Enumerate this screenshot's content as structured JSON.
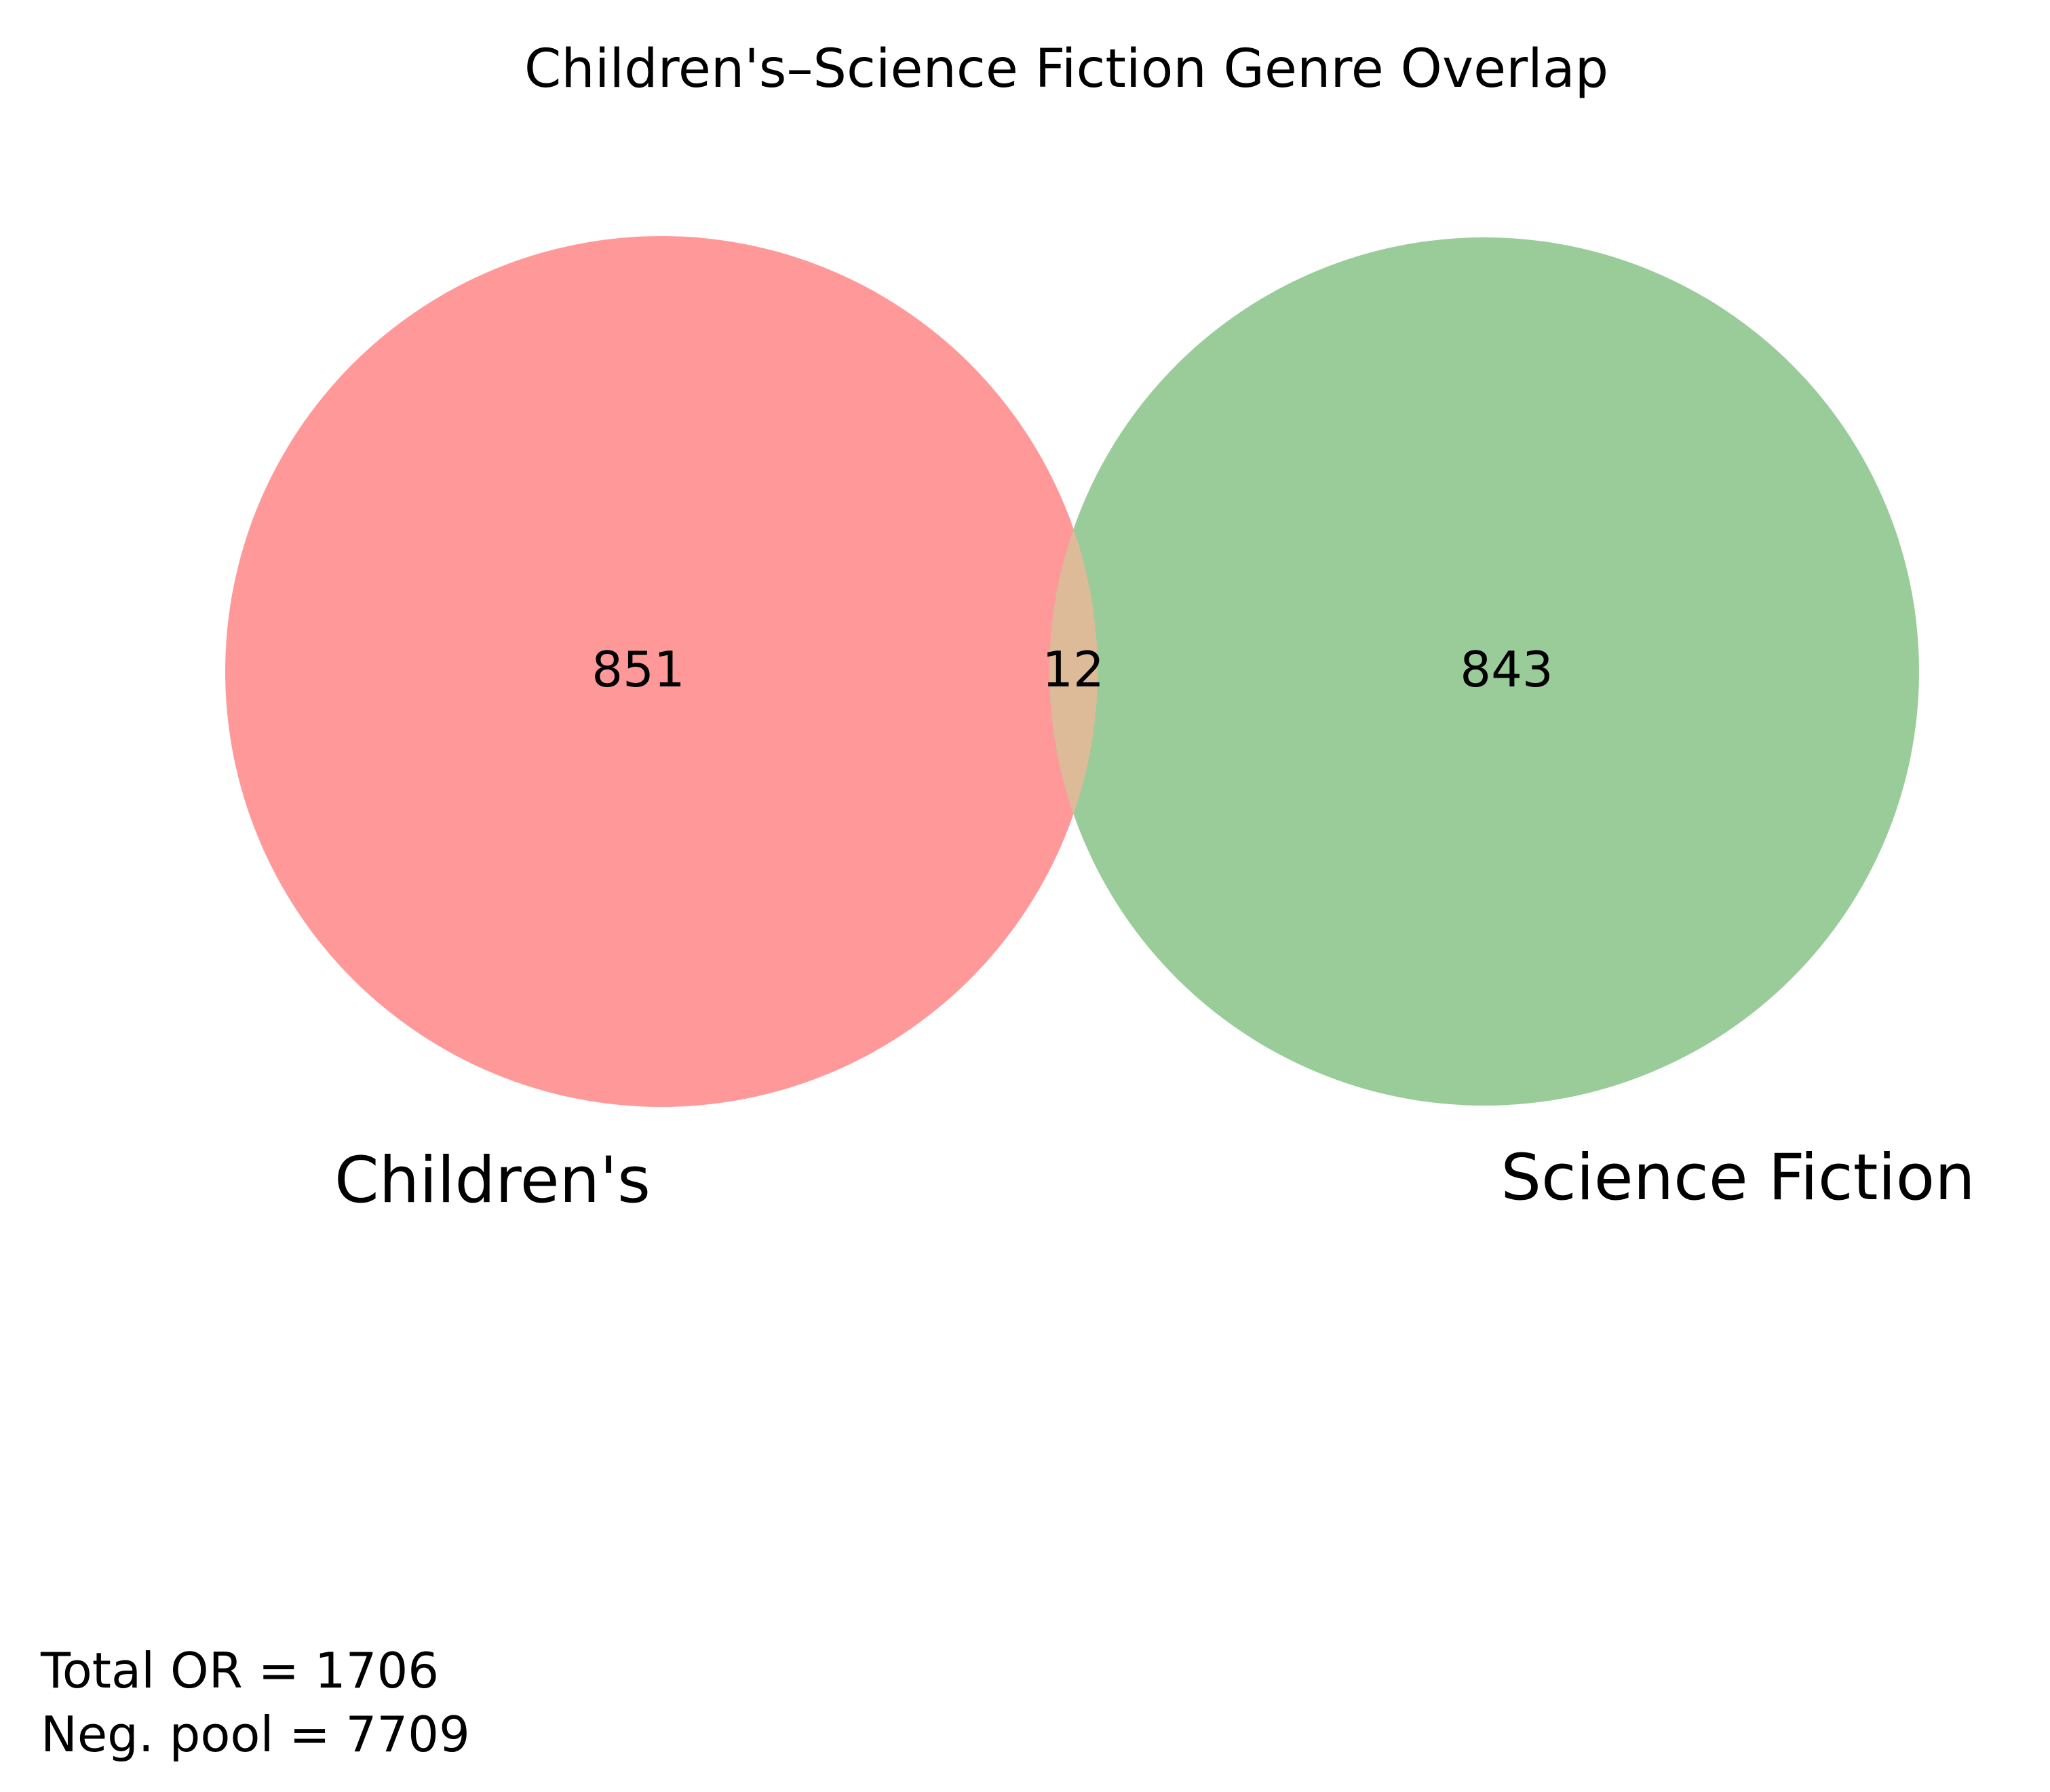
{
  "title": "Children's–Science Fiction Genre Overlap",
  "sets": [
    {
      "label": "Children's",
      "only_count": "851",
      "color": "#ff9999"
    },
    {
      "label": "Science Fiction",
      "only_count": "843",
      "color": "#99cc99"
    }
  ],
  "intersection": {
    "count": "12",
    "color": "#ddbb99"
  },
  "notes": {
    "total_or": "Total OR = 1706",
    "neg_pool": "Neg. pool = 7709"
  }
}
